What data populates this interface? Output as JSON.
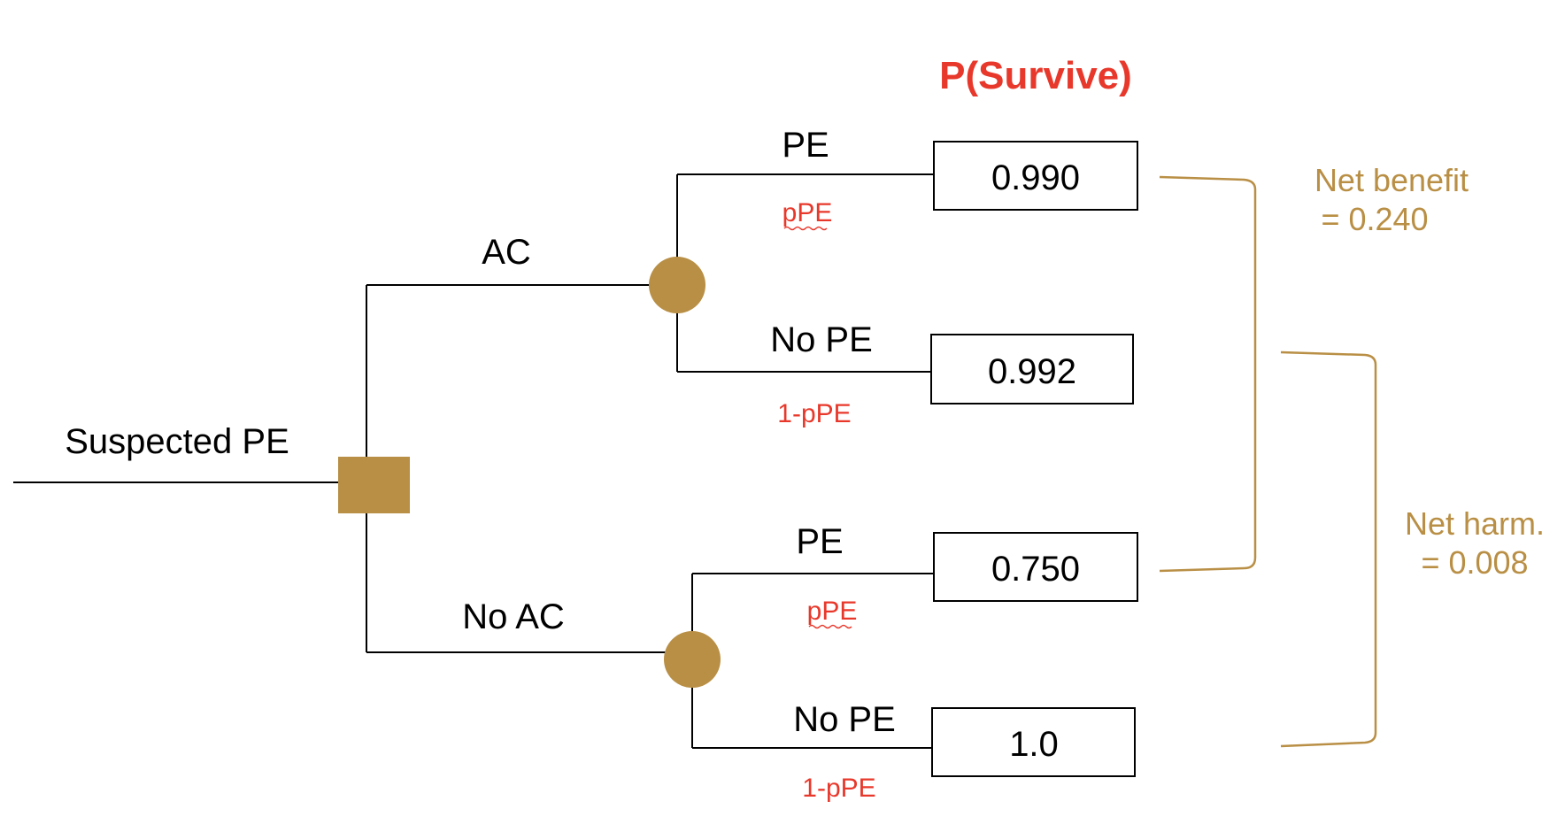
{
  "colors": {
    "node": "#B98F45",
    "accent_red": "#E8382B",
    "bracket": "#B98F45",
    "line": "#000000"
  },
  "title": "P(Survive)",
  "root_label": "Suspected PE",
  "decision_node": "square",
  "branches": {
    "ac": {
      "label": "AC",
      "pe": {
        "label": "PE",
        "prob": "pPE",
        "value": "0.990"
      },
      "no_pe": {
        "label": "No PE",
        "prob": "1-pPE",
        "value": "0.992"
      }
    },
    "no_ac": {
      "label": "No AC",
      "pe": {
        "label": "PE",
        "prob": "pPE",
        "value": "0.750"
      },
      "no_pe": {
        "label": "No PE",
        "prob": "1-pPE",
        "value": "1.0"
      }
    }
  },
  "annotations": {
    "net_benefit": {
      "line1": "Net benefit",
      "line2": "= 0.240"
    },
    "net_harm": {
      "line1": "Net harm.",
      "line2": "= 0.008"
    }
  }
}
